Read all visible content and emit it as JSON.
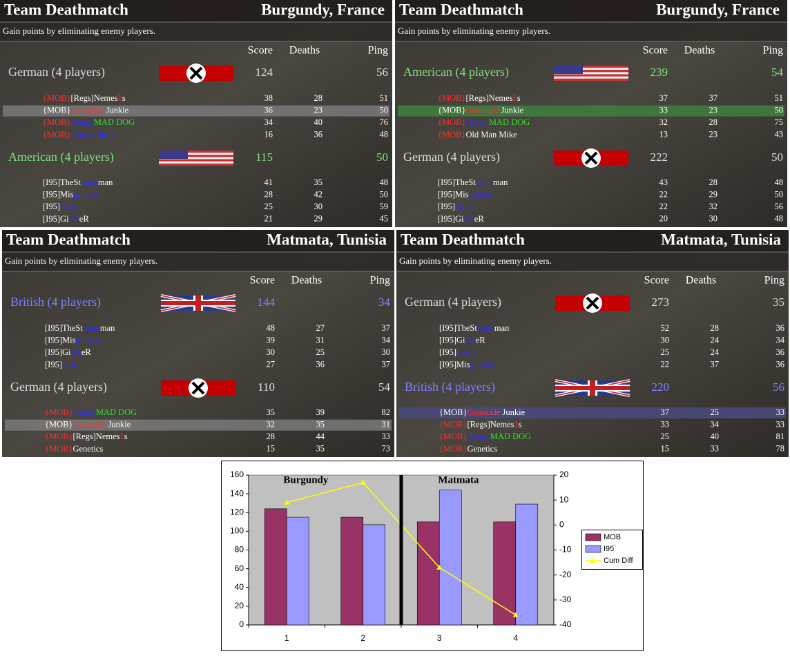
{
  "panels": [
    {
      "title": "Team Deathmatch",
      "map": "Burgundy, France",
      "description": "Gain points by eliminating enemy players.",
      "columns": [
        "Score",
        "Deaths",
        "Ping"
      ],
      "teams": [
        {
          "name": "German (4 players)",
          "flag": "german",
          "color": "#dddddd",
          "score": 124,
          "ping": 56,
          "players": [
            {
              "name": [
                {
                  "text": "{MOB}",
                  "color": "#ff3030"
                },
                {
                  "text": "[Regs]Nemes",
                  "color": "#ffffff"
                },
                {
                  "text": "1",
                  "color": "#ff3030"
                },
                {
                  "text": "s",
                  "color": "#ffffff"
                }
              ],
              "score": 38,
              "deaths": 28,
              "ping": 51
            },
            {
              "name": [
                {
                  "text": "{MOB}",
                  "color": "#ffffff"
                },
                {
                  "text": "Genocide",
                  "color": "#ff3030"
                },
                {
                  "text": " Junkie",
                  "color": "#ffffff"
                }
              ],
              "score": 36,
              "deaths": 23,
              "ping": 50,
              "highlight": "#7a7a7a"
            },
            {
              "name": [
                {
                  "text": "{MOB}",
                  "color": "#ff3030"
                },
                {
                  "text": "[Regs]",
                  "color": "#3030ff"
                },
                {
                  "text": "MAD DOG",
                  "color": "#30e030"
                }
              ],
              "score": 34,
              "deaths": 40,
              "ping": 76
            },
            {
              "name": [
                {
                  "text": "{MOB}",
                  "color": "#ff3030"
                },
                {
                  "text": "Ghost Child",
                  "color": "#3030ff"
                }
              ],
              "score": 16,
              "deaths": 36,
              "ping": 48
            }
          ]
        },
        {
          "name": "American (4 players)",
          "flag": "american",
          "color": "#80e080",
          "score": 115,
          "ping": 50,
          "players": [
            {
              "name": [
                {
                  "text": "[I95]TheSt",
                  "color": "#ffffff"
                },
                {
                  "text": "ream",
                  "color": "#3030ff"
                },
                {
                  "text": "man",
                  "color": "#ffffff"
                }
              ],
              "score": 41,
              "deaths": 35,
              "ping": 48
            },
            {
              "name": [
                {
                  "text": "[I95]Mis",
                  "color": "#ffffff"
                },
                {
                  "text": "guided",
                  "color": "#3030ff"
                }
              ],
              "score": 28,
              "deaths": 42,
              "ping": 50
            },
            {
              "name": [
                {
                  "text": "[I95]",
                  "color": "#ffffff"
                },
                {
                  "text": "Grim",
                  "color": "#3030ff"
                }
              ],
              "score": 25,
              "deaths": 30,
              "ping": 59
            },
            {
              "name": [
                {
                  "text": "[I95]Gi",
                  "color": "#ffffff"
                },
                {
                  "text": "ZZ",
                  "color": "#3030ff"
                },
                {
                  "text": "eR",
                  "color": "#ffffff"
                }
              ],
              "score": 21,
              "deaths": 29,
              "ping": 45
            }
          ]
        }
      ]
    },
    {
      "title": "Team Deathmatch",
      "map": "Burgundy, France",
      "description": "Gain points by eliminating enemy players.",
      "columns": [
        "Score",
        "Deaths",
        "Ping"
      ],
      "teams": [
        {
          "name": "American (4 players)",
          "flag": "american",
          "color": "#80e080",
          "score": 239,
          "ping": 54,
          "players": [
            {
              "name": [
                {
                  "text": "{MOB}",
                  "color": "#ff3030"
                },
                {
                  "text": "[Regs]Nemes",
                  "color": "#ffffff"
                },
                {
                  "text": "1",
                  "color": "#ff3030"
                },
                {
                  "text": "s",
                  "color": "#ffffff"
                }
              ],
              "score": 37,
              "deaths": 37,
              "ping": 51
            },
            {
              "name": [
                {
                  "text": "{MOB}",
                  "color": "#ffffff"
                },
                {
                  "text": "Genocide",
                  "color": "#ff3030"
                },
                {
                  "text": " Junkie",
                  "color": "#ffffff"
                }
              ],
              "score": 33,
              "deaths": 23,
              "ping": 50,
              "highlight": "#3f7f3f"
            },
            {
              "name": [
                {
                  "text": "{MOB}",
                  "color": "#ff3030"
                },
                {
                  "text": "[Regs]",
                  "color": "#3030ff"
                },
                {
                  "text": "MAD DOG",
                  "color": "#30e030"
                }
              ],
              "score": 32,
              "deaths": 28,
              "ping": 75
            },
            {
              "name": [
                {
                  "text": "{MOB}",
                  "color": "#ff3030"
                },
                {
                  "text": "Old Man Mike",
                  "color": "#ffffff"
                }
              ],
              "score": 13,
              "deaths": 23,
              "ping": 43
            }
          ]
        },
        {
          "name": "German (4 players)",
          "flag": "german",
          "color": "#dddddd",
          "score": 222,
          "ping": 50,
          "players": [
            {
              "name": [
                {
                  "text": "[I95]TheSt",
                  "color": "#ffffff"
                },
                {
                  "text": "ream",
                  "color": "#3030ff"
                },
                {
                  "text": "man",
                  "color": "#ffffff"
                }
              ],
              "score": 43,
              "deaths": 28,
              "ping": 48
            },
            {
              "name": [
                {
                  "text": "[I95]Mis",
                  "color": "#ffffff"
                },
                {
                  "text": "guided",
                  "color": "#3030ff"
                }
              ],
              "score": 22,
              "deaths": 29,
              "ping": 50
            },
            {
              "name": [
                {
                  "text": "[I95]",
                  "color": "#ffffff"
                },
                {
                  "text": "Grim",
                  "color": "#3030ff"
                }
              ],
              "score": 22,
              "deaths": 32,
              "ping": 56
            },
            {
              "name": [
                {
                  "text": "[I95]Gi",
                  "color": "#ffffff"
                },
                {
                  "text": "ZZ",
                  "color": "#3030ff"
                },
                {
                  "text": "eR",
                  "color": "#ffffff"
                }
              ],
              "score": 20,
              "deaths": 30,
              "ping": 48
            }
          ]
        }
      ]
    },
    {
      "title": "Team Deathmatch",
      "map": "Matmata, Tunisia",
      "description": "Gain points by eliminating enemy players.",
      "columns": [
        "Score",
        "Deaths",
        "Ping"
      ],
      "teams": [
        {
          "name": "British (4 players)",
          "flag": "british",
          "color": "#8080ff",
          "score": 144,
          "ping": 34,
          "players": [
            {
              "name": [
                {
                  "text": "[I95]TheSt",
                  "color": "#ffffff"
                },
                {
                  "text": "ream",
                  "color": "#3030ff"
                },
                {
                  "text": "man",
                  "color": "#ffffff"
                }
              ],
              "score": 48,
              "deaths": 27,
              "ping": 37
            },
            {
              "name": [
                {
                  "text": "[I95]Mis",
                  "color": "#ffffff"
                },
                {
                  "text": "guided",
                  "color": "#3030ff"
                }
              ],
              "score": 39,
              "deaths": 31,
              "ping": 34
            },
            {
              "name": [
                {
                  "text": "[I95]Gi",
                  "color": "#ffffff"
                },
                {
                  "text": "ZZ",
                  "color": "#3030ff"
                },
                {
                  "text": "eR",
                  "color": "#ffffff"
                }
              ],
              "score": 30,
              "deaths": 25,
              "ping": 30
            },
            {
              "name": [
                {
                  "text": "[I95]",
                  "color": "#ffffff"
                },
                {
                  "text": "Grim",
                  "color": "#3030ff"
                }
              ],
              "score": 27,
              "deaths": 36,
              "ping": 37
            }
          ]
        },
        {
          "name": "German (4 players)",
          "flag": "german",
          "color": "#dddddd",
          "score": 110,
          "ping": 54,
          "players": [
            {
              "name": [
                {
                  "text": "{MOB}",
                  "color": "#ff3030"
                },
                {
                  "text": "[Regs]",
                  "color": "#3030ff"
                },
                {
                  "text": "MAD DOG",
                  "color": "#30e030"
                }
              ],
              "score": 35,
              "deaths": 39,
              "ping": 82
            },
            {
              "name": [
                {
                  "text": "{MOB}",
                  "color": "#ffffff"
                },
                {
                  "text": "Genocide",
                  "color": "#ff3030"
                },
                {
                  "text": " Junkie",
                  "color": "#ffffff"
                }
              ],
              "score": 32,
              "deaths": 35,
              "ping": 31,
              "highlight": "#7a7a7a"
            },
            {
              "name": [
                {
                  "text": "{MOB}",
                  "color": "#ff3030"
                },
                {
                  "text": "[Regs]Nemes",
                  "color": "#ffffff"
                },
                {
                  "text": "1",
                  "color": "#ff3030"
                },
                {
                  "text": "s",
                  "color": "#ffffff"
                }
              ],
              "score": 28,
              "deaths": 44,
              "ping": 33
            },
            {
              "name": [
                {
                  "text": "{MOB}",
                  "color": "#ff3030"
                },
                {
                  "text": "Genetics",
                  "color": "#ffffff"
                }
              ],
              "score": 15,
              "deaths": 35,
              "ping": 73
            }
          ]
        }
      ]
    },
    {
      "title": "Team Deathmatch",
      "map": "Matmata, Tunisia",
      "description": "Gain points by eliminating enemy players.",
      "columns": [
        "Score",
        "Deaths",
        "Ping"
      ],
      "teams": [
        {
          "name": "German (4 players)",
          "flag": "german",
          "color": "#dddddd",
          "score": 273,
          "ping": 35,
          "players": [
            {
              "name": [
                {
                  "text": "[I95]TheSt",
                  "color": "#ffffff"
                },
                {
                  "text": "ream",
                  "color": "#3030ff"
                },
                {
                  "text": "man",
                  "color": "#ffffff"
                }
              ],
              "score": 52,
              "deaths": 28,
              "ping": 36
            },
            {
              "name": [
                {
                  "text": "[I95]Gi",
                  "color": "#ffffff"
                },
                {
                  "text": "ZZ",
                  "color": "#3030ff"
                },
                {
                  "text": "eR",
                  "color": "#ffffff"
                }
              ],
              "score": 30,
              "deaths": 24,
              "ping": 34
            },
            {
              "name": [
                {
                  "text": "[I95]",
                  "color": "#ffffff"
                },
                {
                  "text": "Grim",
                  "color": "#3030ff"
                }
              ],
              "score": 25,
              "deaths": 24,
              "ping": 36
            },
            {
              "name": [
                {
                  "text": "[I95]Mis",
                  "color": "#ffffff"
                },
                {
                  "text": "guided",
                  "color": "#3030ff"
                }
              ],
              "score": 22,
              "deaths": 37,
              "ping": 36
            }
          ]
        },
        {
          "name": "British (4 players)",
          "flag": "british",
          "color": "#8080ff",
          "score": 220,
          "ping": 56,
          "players": [
            {
              "name": [
                {
                  "text": "{MOB}",
                  "color": "#ffffff"
                },
                {
                  "text": "Genocide",
                  "color": "#ff3030"
                },
                {
                  "text": " Junkie",
                  "color": "#ffffff"
                }
              ],
              "score": 37,
              "deaths": 25,
              "ping": 33,
              "highlight": "#4a4a80"
            },
            {
              "name": [
                {
                  "text": "{MOB}",
                  "color": "#ff3030"
                },
                {
                  "text": "[Regs]Nemes",
                  "color": "#ffffff"
                },
                {
                  "text": "1",
                  "color": "#ff3030"
                },
                {
                  "text": "s",
                  "color": "#ffffff"
                }
              ],
              "score": 33,
              "deaths": 34,
              "ping": 33
            },
            {
              "name": [
                {
                  "text": "{MOB}",
                  "color": "#ff3030"
                },
                {
                  "text": "[Regs]",
                  "color": "#3030ff"
                },
                {
                  "text": "MAD DOG",
                  "color": "#30e030"
                }
              ],
              "score": 25,
              "deaths": 40,
              "ping": 81
            },
            {
              "name": [
                {
                  "text": "{MOB}",
                  "color": "#ff3030"
                },
                {
                  "text": "Genetics",
                  "color": "#ffffff"
                }
              ],
              "score": 15,
              "deaths": 33,
              "ping": 78
            }
          ]
        }
      ]
    }
  ],
  "chart_data": {
    "type": "bar",
    "categories": [
      "1",
      "2",
      "3",
      "4"
    ],
    "annotations": [
      "Burgundy",
      "Matmata"
    ],
    "series": [
      {
        "name": "MOB",
        "color": "#993366",
        "values": [
          124,
          115,
          110,
          110
        ]
      },
      {
        "name": "I95",
        "color": "#9999ff",
        "values": [
          115,
          107,
          144,
          129
        ]
      },
      {
        "name": "Cum Diff",
        "type": "line",
        "axis": "y2",
        "color": "#ffff00",
        "values": [
          9,
          17,
          -17,
          -36
        ]
      }
    ],
    "ylim": [
      0,
      160
    ],
    "yticks": [
      0,
      20,
      40,
      60,
      80,
      100,
      120,
      140,
      160
    ],
    "y2lim": [
      -40,
      20
    ],
    "y2ticks": [
      -40,
      -30,
      -20,
      -10,
      0,
      10,
      20
    ],
    "grid": false,
    "legend": "right",
    "plot_background": "#c0c0c0"
  }
}
